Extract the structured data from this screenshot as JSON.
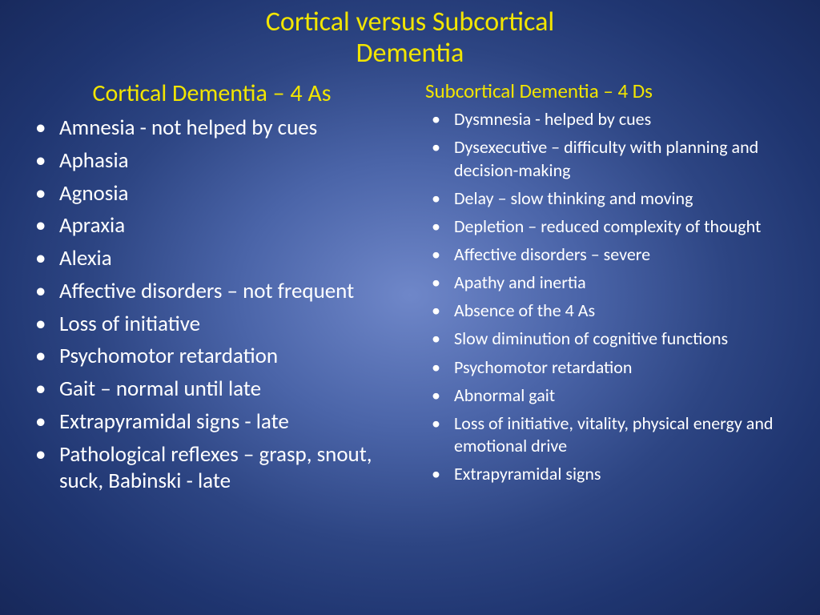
{
  "colors": {
    "accent": "#f2e500",
    "text": "#ffffff"
  },
  "title_line1": "Cortical versus Subcortical",
  "title_line2": "Dementia",
  "left": {
    "heading": "Cortical Dementia – 4 As",
    "items": [
      "Amnesia - not helped by cues",
      "Aphasia",
      "Agnosia",
      "Apraxia",
      "Alexia",
      "Affective disorders – not frequent",
      "Loss of initiative",
      "Psychomotor retardation",
      "Gait – normal until late",
      "Extrapyramidal signs - late",
      "Pathological reflexes – grasp, snout, suck, Babinski - late"
    ]
  },
  "right": {
    "heading": "Subcortical Dementia – 4 Ds",
    "items": [
      "Dysmnesia - helped by cues",
      "Dysexecutive – difficulty with planning and decision-making",
      "Delay – slow thinking and moving",
      "Depletion – reduced complexity of thought",
      "Affective disorders – severe",
      "Apathy and inertia",
      "Absence of the 4 As",
      "Slow diminution of cognitive functions",
      "Psychomotor retardation",
      "Abnormal gait",
      "Loss of initiative, vitality, physical energy and emotional drive",
      "Extrapyramidal signs"
    ]
  }
}
